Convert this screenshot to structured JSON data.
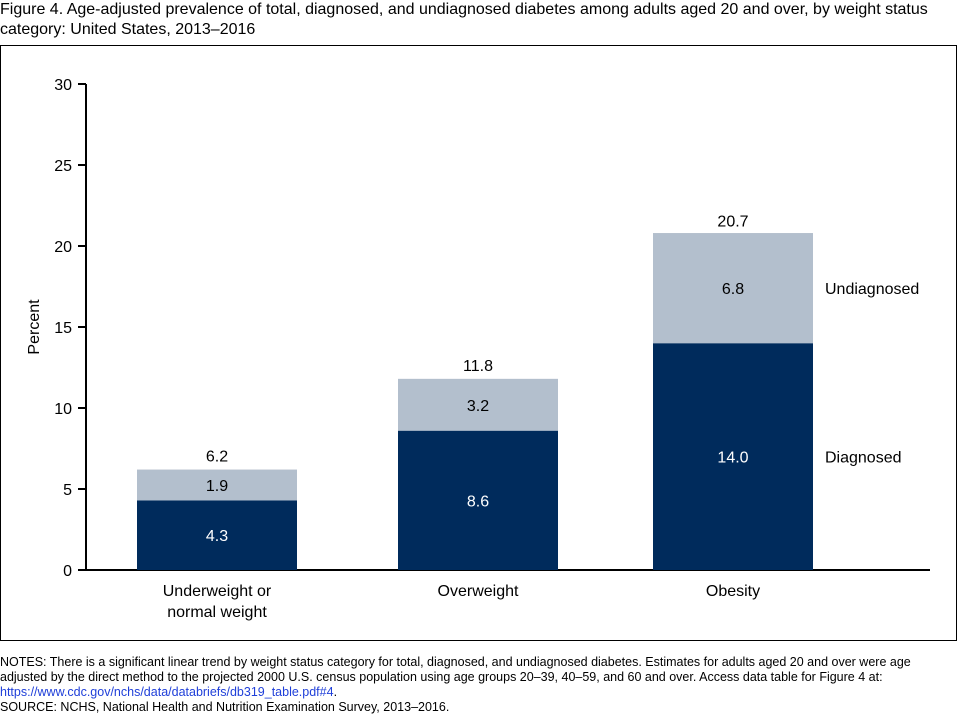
{
  "figure": {
    "title": "Figure 4. Age-adjusted prevalence of total, diagnosed, and undiagnosed diabetes among adults aged 20 and over, by weight status category: United States, 2013–2016"
  },
  "chart_data": {
    "type": "bar",
    "stacked": true,
    "ylabel": "Percent",
    "ylim": [
      0,
      30
    ],
    "yticks": [
      0,
      5,
      10,
      15,
      20,
      25,
      30
    ],
    "categories": [
      [
        "Underweight or",
        "normal weight"
      ],
      [
        "Overweight"
      ],
      [
        "Obesity"
      ]
    ],
    "series": [
      {
        "name": "Diagnosed",
        "values": [
          4.3,
          8.6,
          14.0
        ],
        "labels": [
          "4.3",
          "8.6",
          "14.0"
        ],
        "color": "#002b5c",
        "label_color": "#ffffff"
      },
      {
        "name": "Undiagnosed",
        "values": [
          1.9,
          3.2,
          6.8
        ],
        "labels": [
          "1.9",
          "3.2",
          "6.8"
        ],
        "color": "#b3bfcd",
        "label_color": "#000000"
      }
    ],
    "totals": [
      6.2,
      11.8,
      20.7
    ],
    "total_labels": [
      "6.2",
      "11.8",
      "20.7"
    ],
    "grid": false,
    "legend": "inline-right"
  },
  "notes": {
    "text": "NOTES: There is a significant linear trend by weight status category for total, diagnosed, and undiagnosed diabetes. Estimates for adults aged 20 and over were age adjusted by the direct method to the projected 2000 U.S. census population using age groups 20–39, 40–59, and 60 and over. Access data table for Figure 4 at: ",
    "link_text": "https://www.cdc.gov/nchs/data/databriefs/db319_table.pdf#4",
    "link_suffix": ".",
    "source": "SOURCE: NCHS, National Health and Nutrition Examination Survey, 2013–2016."
  }
}
